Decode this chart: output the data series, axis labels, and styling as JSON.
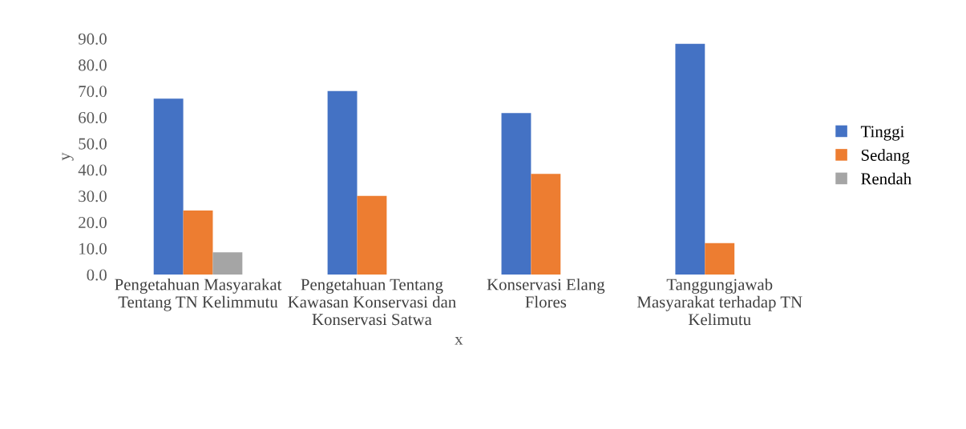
{
  "chart_data": {
    "type": "bar",
    "xlabel": "x",
    "ylabel": "y",
    "categories": [
      "Pengetahuan Masyarakat Tentang TN Kelimmutu",
      "Pengetahuan Tentang Kawasan Konservasi dan Konservasi Satwa",
      "Konservasi Elang Flores",
      "Tanggungjawab Masyarakat terhadap TN Kelimutu"
    ],
    "series": [
      {
        "name": "Tinggi",
        "color": "#4472c4",
        "values": [
          67.1,
          70.0,
          61.6,
          88.0
        ]
      },
      {
        "name": "Sedang",
        "color": "#ed7d31",
        "values": [
          24.4,
          30.0,
          38.4,
          12.0
        ]
      },
      {
        "name": "Rendah",
        "color": "#a5a5a5",
        "values": [
          8.5,
          0,
          0,
          0
        ]
      }
    ],
    "ylim": [
      0,
      90
    ],
    "yticks": [
      {
        "value": 0,
        "label": "0.0"
      },
      {
        "value": 10,
        "label": "10.0"
      },
      {
        "value": 20,
        "label": "20.0"
      },
      {
        "value": 30,
        "label": "30.0"
      },
      {
        "value": 40,
        "label": "40.0"
      },
      {
        "value": 50,
        "label": "50.0"
      },
      {
        "value": 60,
        "label": "60.0"
      },
      {
        "value": 70,
        "label": "70.0"
      },
      {
        "value": 80,
        "label": "80.0"
      },
      {
        "value": 90,
        "label": "90.0"
      }
    ],
    "grid": false,
    "legend": "right"
  }
}
